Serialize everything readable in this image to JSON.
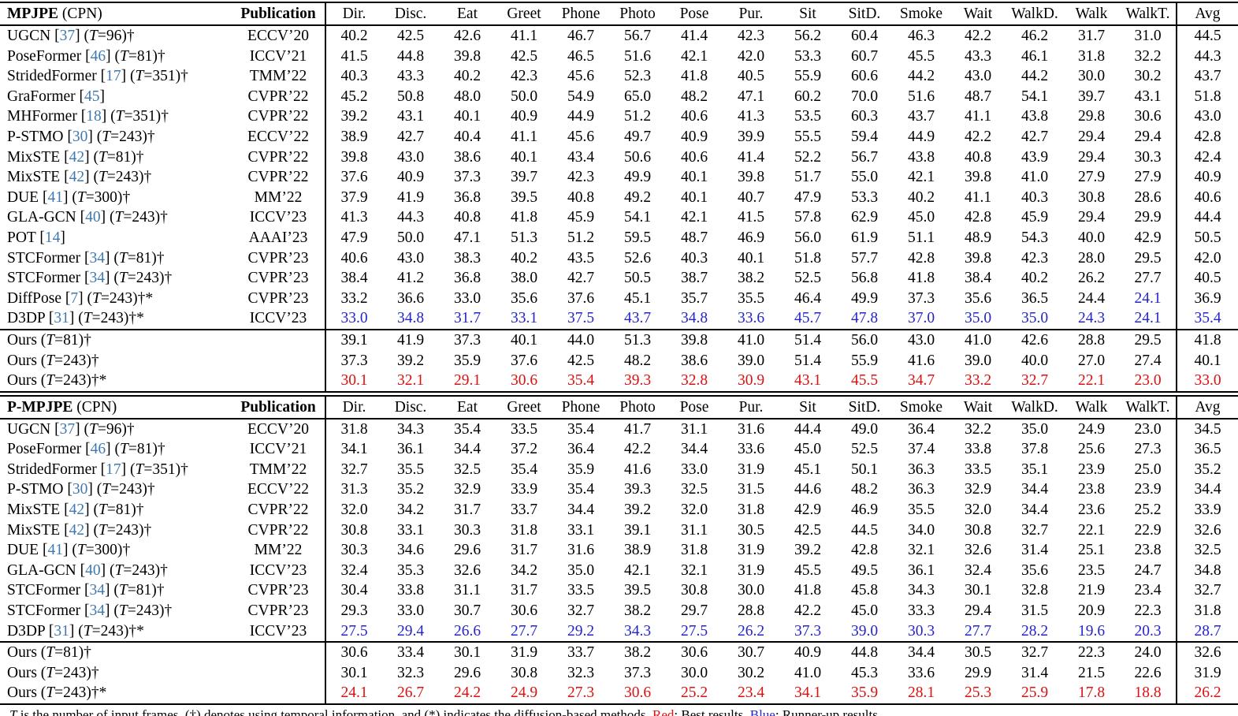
{
  "colors": {
    "best": "#DE1010",
    "runner_up": "#2525CE",
    "citation": "#4179AE"
  },
  "columns": [
    "Dir.",
    "Disc.",
    "Eat",
    "Greet",
    "Phone",
    "Photo",
    "Pose",
    "Pur.",
    "Sit",
    "SitD.",
    "Smoke",
    "Wait",
    "WalkD.",
    "Walk",
    "WalkT.",
    "Avg"
  ],
  "sections": [
    {
      "metric": "MPJPE",
      "metric_suffix": "(CPN)",
      "publication_header": "Publication",
      "rows": [
        {
          "method": "UGCN",
          "cite": "37",
          "frames": "96",
          "marks": "†",
          "pub": "ECCV’20",
          "values": [
            "40.2",
            "42.5",
            "42.6",
            "41.1",
            "46.7",
            "56.7",
            "41.4",
            "42.3",
            "56.2",
            "60.4",
            "46.3",
            "42.2",
            "46.2",
            "31.7",
            "31.0",
            "44.5"
          ]
        },
        {
          "method": "PoseFormer",
          "cite": "46",
          "frames": "81",
          "marks": "†",
          "pub": "ICCV’21",
          "values": [
            "41.5",
            "44.8",
            "39.8",
            "42.5",
            "46.5",
            "51.6",
            "42.1",
            "42.0",
            "53.3",
            "60.7",
            "45.5",
            "43.3",
            "46.1",
            "31.8",
            "32.2",
            "44.3"
          ]
        },
        {
          "method": "StridedFormer",
          "cite": "17",
          "frames": "351",
          "marks": "†",
          "pub": "TMM’22",
          "values": [
            "40.3",
            "43.3",
            "40.2",
            "42.3",
            "45.6",
            "52.3",
            "41.8",
            "40.5",
            "55.9",
            "60.6",
            "44.2",
            "43.0",
            "44.2",
            "30.0",
            "30.2",
            "43.7"
          ]
        },
        {
          "method": "GraFormer",
          "cite": "45",
          "frames": "",
          "marks": "",
          "pub": "CVPR’22",
          "values": [
            "45.2",
            "50.8",
            "48.0",
            "50.0",
            "54.9",
            "65.0",
            "48.2",
            "47.1",
            "60.2",
            "70.0",
            "51.6",
            "48.7",
            "54.1",
            "39.7",
            "43.1",
            "51.8"
          ]
        },
        {
          "method": "MHFormer",
          "cite": "18",
          "frames": "351",
          "marks": "†",
          "pub": "CVPR’22",
          "values": [
            "39.2",
            "43.1",
            "40.1",
            "40.9",
            "44.9",
            "51.2",
            "40.6",
            "41.3",
            "53.5",
            "60.3",
            "43.7",
            "41.1",
            "43.8",
            "29.8",
            "30.6",
            "43.0"
          ]
        },
        {
          "method": "P-STMO",
          "cite": "30",
          "frames": "243",
          "marks": "†",
          "pub": "ECCV’22",
          "values": [
            "38.9",
            "42.7",
            "40.4",
            "41.1",
            "45.6",
            "49.7",
            "40.9",
            "39.9",
            "55.5",
            "59.4",
            "44.9",
            "42.2",
            "42.7",
            "29.4",
            "29.4",
            "42.8"
          ]
        },
        {
          "method": "MixSTE",
          "cite": "42",
          "frames": "81",
          "marks": "†",
          "pub": "CVPR’22",
          "values": [
            "39.8",
            "43.0",
            "38.6",
            "40.1",
            "43.4",
            "50.6",
            "40.6",
            "41.4",
            "52.2",
            "56.7",
            "43.8",
            "40.8",
            "43.9",
            "29.4",
            "30.3",
            "42.4"
          ]
        },
        {
          "method": "MixSTE",
          "cite": "42",
          "frames": "243",
          "marks": "†",
          "pub": "CVPR’22",
          "values": [
            "37.6",
            "40.9",
            "37.3",
            "39.7",
            "42.3",
            "49.9",
            "40.1",
            "39.8",
            "51.7",
            "55.0",
            "42.1",
            "39.8",
            "41.0",
            "27.9",
            "27.9",
            "40.9"
          ]
        },
        {
          "method": "DUE",
          "cite": "41",
          "frames": "300",
          "marks": "†",
          "pub": "MM’22",
          "values": [
            "37.9",
            "41.9",
            "36.8",
            "39.5",
            "40.8",
            "49.2",
            "40.1",
            "40.7",
            "47.9",
            "53.3",
            "40.2",
            "41.1",
            "40.3",
            "30.8",
            "28.6",
            "40.6"
          ]
        },
        {
          "method": "GLA-GCN",
          "cite": "40",
          "frames": "243",
          "marks": "†",
          "pub": "ICCV’23",
          "values": [
            "41.3",
            "44.3",
            "40.8",
            "41.8",
            "45.9",
            "54.1",
            "42.1",
            "41.5",
            "57.8",
            "62.9",
            "45.0",
            "42.8",
            "45.9",
            "29.4",
            "29.9",
            "44.4"
          ]
        },
        {
          "method": "POT",
          "cite": "14",
          "frames": "",
          "marks": "",
          "pub": "AAAI’23",
          "values": [
            "47.9",
            "50.0",
            "47.1",
            "51.3",
            "51.2",
            "59.5",
            "48.7",
            "46.9",
            "56.0",
            "61.9",
            "51.1",
            "48.9",
            "54.3",
            "40.0",
            "42.9",
            "50.5"
          ]
        },
        {
          "method": "STCFormer",
          "cite": "34",
          "frames": "81",
          "marks": "†",
          "pub": "CVPR’23",
          "values": [
            "40.6",
            "43.0",
            "38.3",
            "40.2",
            "43.5",
            "52.6",
            "40.3",
            "40.1",
            "51.8",
            "57.7",
            "42.8",
            "39.8",
            "42.3",
            "28.0",
            "29.5",
            "42.0"
          ]
        },
        {
          "method": "STCFormer",
          "cite": "34",
          "frames": "243",
          "marks": "†",
          "pub": "CVPR’23",
          "values": [
            "38.4",
            "41.2",
            "36.8",
            "38.0",
            "42.7",
            "50.5",
            "38.7",
            "38.2",
            "52.5",
            "56.8",
            "41.8",
            "38.4",
            "40.2",
            "26.2",
            "27.7",
            "40.5"
          ]
        },
        {
          "method": "DiffPose",
          "cite": "7",
          "frames": "243",
          "marks": "†*",
          "pub": "CVPR’23",
          "values": [
            "33.2",
            "36.6",
            "33.0",
            "35.6",
            "37.6",
            "45.1",
            "35.7",
            "35.5",
            "46.4",
            "49.9",
            "37.3",
            "35.6",
            "36.5",
            "24.4",
            "24.1",
            "36.9"
          ],
          "cell_colors": {
            "14": "runner_up"
          }
        },
        {
          "method": "D3DP",
          "cite": "31",
          "frames": "243",
          "marks": "†*",
          "pub": "ICCV’23",
          "values": [
            "33.0",
            "34.8",
            "31.7",
            "33.1",
            "37.5",
            "43.7",
            "34.8",
            "33.6",
            "45.7",
            "47.8",
            "37.0",
            "35.0",
            "35.0",
            "24.3",
            "24.1",
            "35.4"
          ],
          "color": "runner_up"
        },
        {
          "method": "Ours",
          "cite": "",
          "frames": "81",
          "marks": "†",
          "pub": "",
          "rule_above": true,
          "values": [
            "39.1",
            "41.9",
            "37.3",
            "40.1",
            "44.0",
            "51.3",
            "39.8",
            "41.0",
            "51.4",
            "56.0",
            "43.0",
            "41.0",
            "42.6",
            "28.8",
            "29.5",
            "41.8"
          ]
        },
        {
          "method": "Ours",
          "cite": "",
          "frames": "243",
          "marks": "†",
          "pub": "",
          "values": [
            "37.3",
            "39.2",
            "35.9",
            "37.6",
            "42.5",
            "48.2",
            "38.6",
            "39.0",
            "51.4",
            "55.9",
            "41.6",
            "39.0",
            "40.0",
            "27.0",
            "27.4",
            "40.1"
          ]
        },
        {
          "method": "Ours",
          "cite": "",
          "frames": "243",
          "marks": "†*",
          "pub": "",
          "values": [
            "30.1",
            "32.1",
            "29.1",
            "30.6",
            "35.4",
            "39.3",
            "32.8",
            "30.9",
            "43.1",
            "45.5",
            "34.7",
            "33.2",
            "32.7",
            "22.1",
            "23.0",
            "33.0"
          ],
          "color": "best"
        }
      ]
    },
    {
      "metric": "P-MPJPE",
      "metric_suffix": "(CPN)",
      "publication_header": "Publication",
      "rows": [
        {
          "method": "UGCN",
          "cite": "37",
          "frames": "96",
          "marks": "†",
          "pub": "ECCV’20",
          "values": [
            "31.8",
            "34.3",
            "35.4",
            "33.5",
            "35.4",
            "41.7",
            "31.1",
            "31.6",
            "44.4",
            "49.0",
            "36.4",
            "32.2",
            "35.0",
            "24.9",
            "23.0",
            "34.5"
          ]
        },
        {
          "method": "PoseFormer",
          "cite": "46",
          "frames": "81",
          "marks": "†",
          "pub": "ICCV’21",
          "values": [
            "34.1",
            "36.1",
            "34.4",
            "37.2",
            "36.4",
            "42.2",
            "34.4",
            "33.6",
            "45.0",
            "52.5",
            "37.4",
            "33.8",
            "37.8",
            "25.6",
            "27.3",
            "36.5"
          ]
        },
        {
          "method": "StridedFormer",
          "cite": "17",
          "frames": "351",
          "marks": "†",
          "pub": "TMM’22",
          "values": [
            "32.7",
            "35.5",
            "32.5",
            "35.4",
            "35.9",
            "41.6",
            "33.0",
            "31.9",
            "45.1",
            "50.1",
            "36.3",
            "33.5",
            "35.1",
            "23.9",
            "25.0",
            "35.2"
          ]
        },
        {
          "method": "P-STMO",
          "cite": "30",
          "frames": "243",
          "marks": "†",
          "pub": "ECCV’22",
          "values": [
            "31.3",
            "35.2",
            "32.9",
            "33.9",
            "35.4",
            "39.3",
            "32.5",
            "31.5",
            "44.6",
            "48.2",
            "36.3",
            "32.9",
            "34.4",
            "23.8",
            "23.9",
            "34.4"
          ]
        },
        {
          "method": "MixSTE",
          "cite": "42",
          "frames": "81",
          "marks": "†",
          "pub": "CVPR’22",
          "values": [
            "32.0",
            "34.2",
            "31.7",
            "33.7",
            "34.4",
            "39.2",
            "32.0",
            "31.8",
            "42.9",
            "46.9",
            "35.5",
            "32.0",
            "34.4",
            "23.6",
            "25.2",
            "33.9"
          ]
        },
        {
          "method": "MixSTE",
          "cite": "42",
          "frames": "243",
          "marks": "†",
          "pub": "CVPR’22",
          "values": [
            "30.8",
            "33.1",
            "30.3",
            "31.8",
            "33.1",
            "39.1",
            "31.1",
            "30.5",
            "42.5",
            "44.5",
            "34.0",
            "30.8",
            "32.7",
            "22.1",
            "22.9",
            "32.6"
          ]
        },
        {
          "method": "DUE",
          "cite": "41",
          "frames": "300",
          "marks": "†",
          "pub": "MM’22",
          "values": [
            "30.3",
            "34.6",
            "29.6",
            "31.7",
            "31.6",
            "38.9",
            "31.8",
            "31.9",
            "39.2",
            "42.8",
            "32.1",
            "32.6",
            "31.4",
            "25.1",
            "23.8",
            "32.5"
          ]
        },
        {
          "method": "GLA-GCN",
          "cite": "40",
          "frames": "243",
          "marks": "†",
          "pub": "ICCV’23",
          "values": [
            "32.4",
            "35.3",
            "32.6",
            "34.2",
            "35.0",
            "42.1",
            "32.1",
            "31.9",
            "45.5",
            "49.5",
            "36.1",
            "32.4",
            "35.6",
            "23.5",
            "24.7",
            "34.8"
          ]
        },
        {
          "method": "STCFormer",
          "cite": "34",
          "frames": "81",
          "marks": "†",
          "pub": "CVPR’23",
          "values": [
            "30.4",
            "33.8",
            "31.1",
            "31.7",
            "33.5",
            "39.5",
            "30.8",
            "30.0",
            "41.8",
            "45.8",
            "34.3",
            "30.1",
            "32.8",
            "21.9",
            "23.4",
            "32.7"
          ]
        },
        {
          "method": "STCFormer",
          "cite": "34",
          "frames": "243",
          "marks": "†",
          "pub": "CVPR’23",
          "values": [
            "29.3",
            "33.0",
            "30.7",
            "30.6",
            "32.7",
            "38.2",
            "29.7",
            "28.8",
            "42.2",
            "45.0",
            "33.3",
            "29.4",
            "31.5",
            "20.9",
            "22.3",
            "31.8"
          ]
        },
        {
          "method": "D3DP",
          "cite": "31",
          "frames": "243",
          "marks": "†*",
          "pub": "ICCV’23",
          "values": [
            "27.5",
            "29.4",
            "26.6",
            "27.7",
            "29.2",
            "34.3",
            "27.5",
            "26.2",
            "37.3",
            "39.0",
            "30.3",
            "27.7",
            "28.2",
            "19.6",
            "20.3",
            "28.7"
          ],
          "color": "runner_up"
        },
        {
          "method": "Ours",
          "cite": "",
          "frames": "81",
          "marks": "†",
          "pub": "",
          "rule_above": true,
          "values": [
            "30.6",
            "33.4",
            "30.1",
            "31.9",
            "33.7",
            "38.2",
            "30.6",
            "30.7",
            "40.9",
            "44.8",
            "34.4",
            "30.5",
            "32.7",
            "22.3",
            "24.0",
            "32.6"
          ]
        },
        {
          "method": "Ours",
          "cite": "",
          "frames": "243",
          "marks": "†",
          "pub": "",
          "values": [
            "30.1",
            "32.3",
            "29.6",
            "30.8",
            "32.3",
            "37.3",
            "30.0",
            "30.2",
            "41.0",
            "45.3",
            "33.6",
            "29.9",
            "31.4",
            "21.5",
            "22.6",
            "31.9"
          ]
        },
        {
          "method": "Ours",
          "cite": "",
          "frames": "243",
          "marks": "†*",
          "pub": "",
          "values": [
            "24.1",
            "26.7",
            "24.2",
            "24.9",
            "27.3",
            "30.6",
            "25.2",
            "23.4",
            "34.1",
            "35.9",
            "28.1",
            "25.3",
            "25.9",
            "17.8",
            "18.8",
            "26.2"
          ],
          "color": "best"
        }
      ]
    }
  ],
  "footnote": {
    "segments": [
      {
        "text": "T",
        "italic": true
      },
      {
        "text": " is the number of input frames. (†) denotes using temporal information, and (*) indicates the diffusion-based methods. "
      },
      {
        "text": "Red",
        "color": "best"
      },
      {
        "text": ": Best results. "
      },
      {
        "text": "Blue",
        "color": "runner_up"
      },
      {
        "text": ": Runner-up results."
      }
    ]
  }
}
